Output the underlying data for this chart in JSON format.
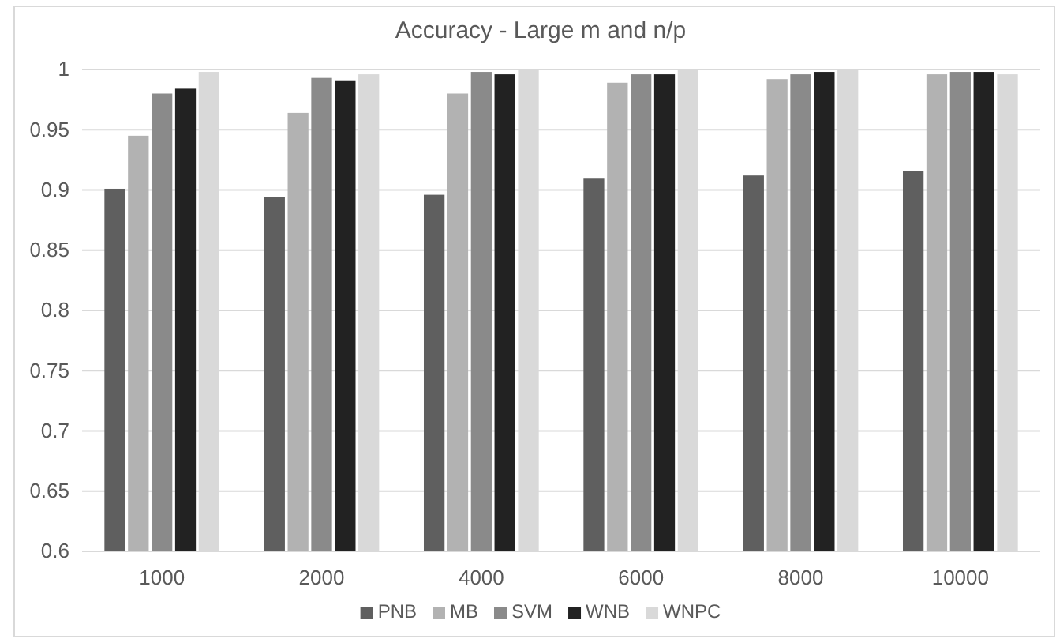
{
  "chart_data": {
    "type": "bar",
    "title": "Accuracy - Large m and n/p",
    "categories": [
      "1000",
      "2000",
      "4000",
      "6000",
      "8000",
      "10000"
    ],
    "series": [
      {
        "name": "PNB",
        "color": "#5f5f5f",
        "values": [
          0.901,
          0.894,
          0.896,
          0.91,
          0.912,
          0.916
        ]
      },
      {
        "name": "MB",
        "color": "#b2b2b2",
        "values": [
          0.945,
          0.964,
          0.98,
          0.989,
          0.992,
          0.996
        ]
      },
      {
        "name": "SVM",
        "color": "#8a8a8a",
        "values": [
          0.98,
          0.993,
          0.998,
          0.996,
          0.996,
          0.998
        ]
      },
      {
        "name": "WNB",
        "color": "#222222",
        "values": [
          0.984,
          0.991,
          0.996,
          0.996,
          0.998,
          0.998
        ]
      },
      {
        "name": "WNPC",
        "color": "#d9d9d9",
        "values": [
          0.998,
          0.996,
          1.0,
          1.0,
          1.0,
          0.996
        ]
      }
    ],
    "ylim": [
      0.6,
      1
    ],
    "yticks": [
      0.6,
      0.65,
      0.7,
      0.75,
      0.8,
      0.85,
      0.9,
      0.95,
      1
    ],
    "grid": "y",
    "legend": "bottom"
  }
}
